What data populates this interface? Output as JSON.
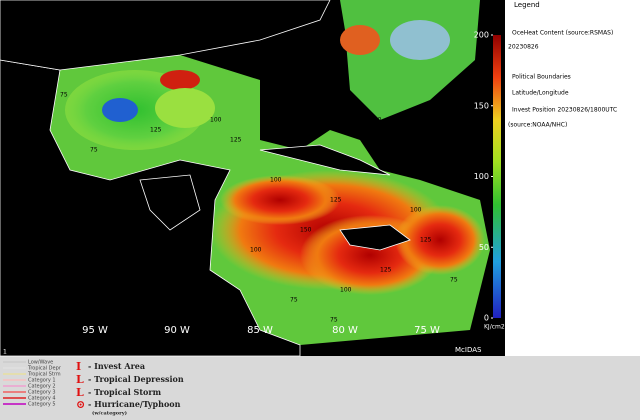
{
  "map": {
    "longitude_labels": [
      "95 W",
      "90 W",
      "85 W",
      "80 W",
      "75 W"
    ],
    "contour_labels": [
      "100",
      "75",
      "125",
      "100",
      "75",
      "125",
      "100",
      "150",
      "125",
      "100",
      "75",
      "100",
      "125",
      "100",
      "75",
      "100",
      "125",
      "75",
      "100",
      "75"
    ],
    "credit": "McIDAS",
    "frame_number": "1"
  },
  "colorbar": {
    "ticks": [
      0,
      50,
      100,
      150,
      200
    ],
    "unit": "KJ/cm2"
  },
  "legend": {
    "title": "Legend",
    "items": [
      "OceHeat Content  (source:RSMAS)",
      "20230826",
      "Political Boundaries",
      "Latitude/Longitude",
      "Invest Position  20230826/1800UTC",
      "(source:NOAA/NHC)"
    ]
  },
  "storm_key": {
    "line_types": [
      "Low/Wave",
      "Tropical Depr",
      "Tropical Strm",
      "Category 1",
      "Category 2",
      "Category 3",
      "Category 4",
      "Category 5"
    ],
    "symbols": [
      "- Invest Area",
      "- Tropical Depression",
      "- Tropical Storm",
      "- Hurricane/Typhoon",
      "(w/category)"
    ]
  }
}
